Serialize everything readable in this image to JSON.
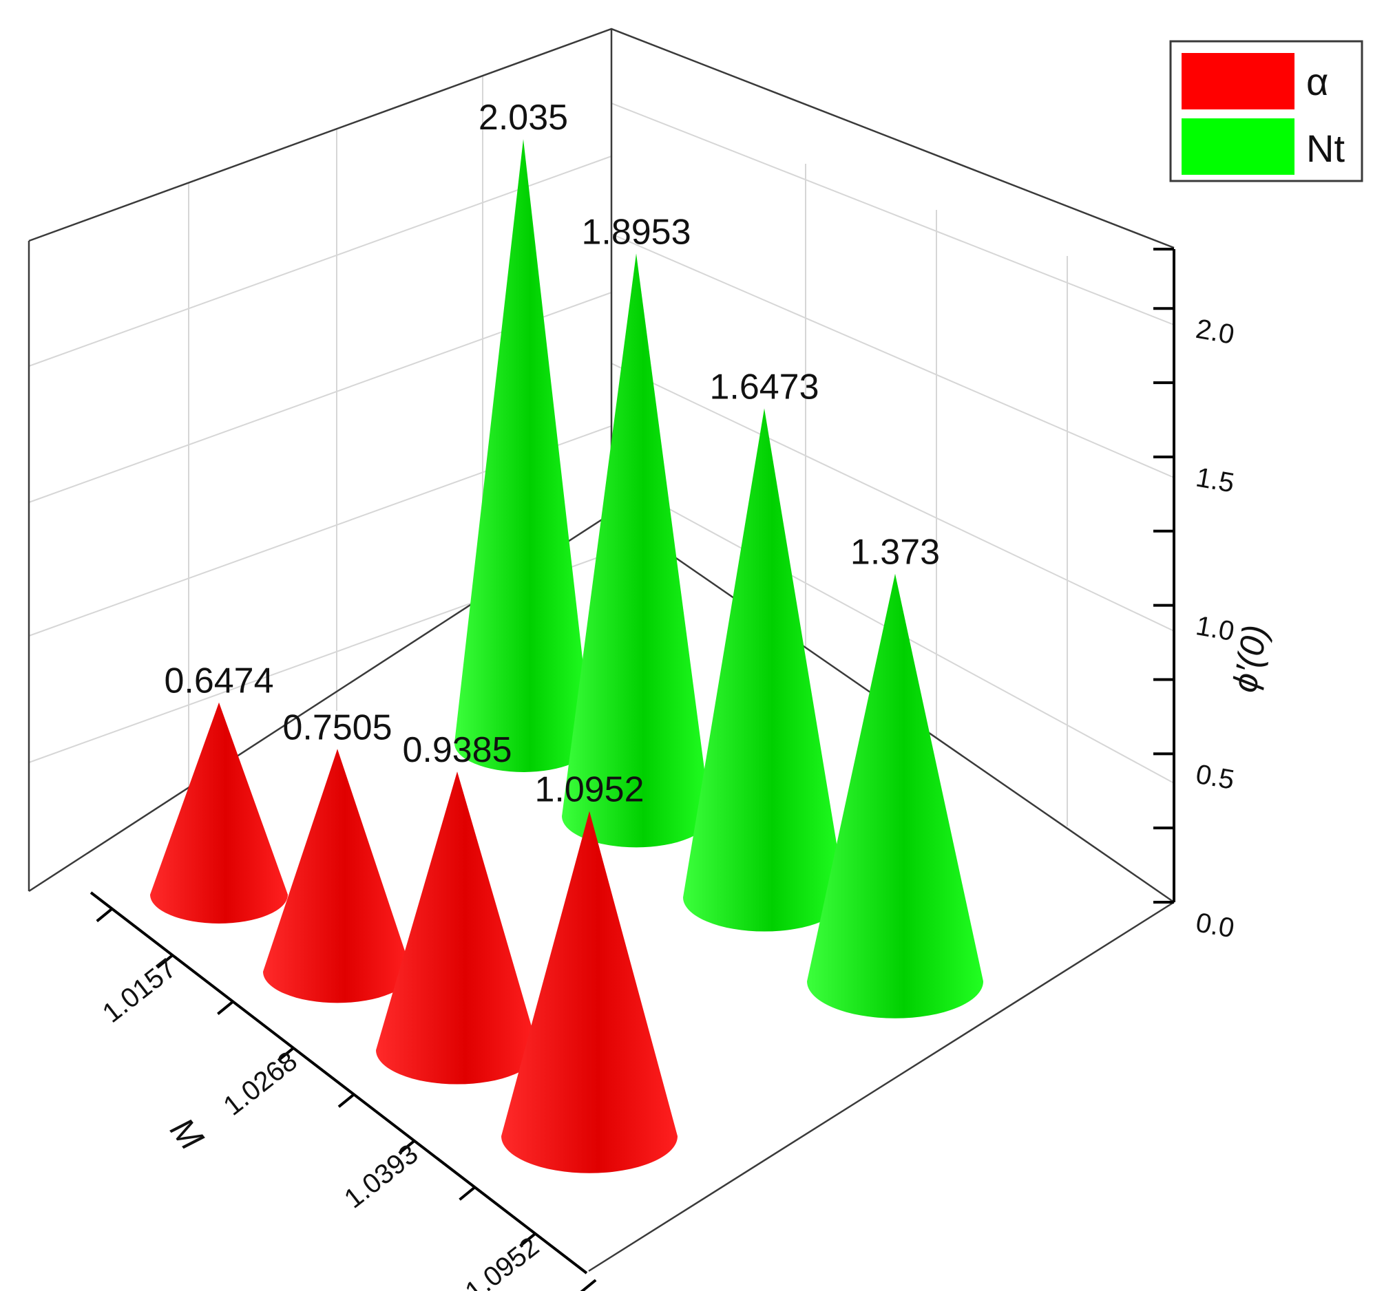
{
  "chart_data": {
    "type": "bar",
    "shape": "3d-cone",
    "categories": [
      "1.0157",
      "1.0268",
      "1.0393",
      "1.0952"
    ],
    "series": [
      {
        "name": "α",
        "color": "#ff0000",
        "values": [
          0.6474,
          0.7505,
          0.9385,
          1.0952
        ],
        "value_labels": [
          "0.6474",
          "0.7505",
          "0.9385",
          "1.0952"
        ]
      },
      {
        "name": "Nt",
        "color": "#00ff00",
        "values": [
          2.035,
          1.8953,
          1.6473,
          1.373
        ],
        "value_labels": [
          "2.035",
          "1.8953",
          "1.6473",
          "1.373"
        ]
      }
    ],
    "xlabel": "M",
    "zlabel": "ϕ′(0)",
    "zlim": [
      0.0,
      2.2
    ],
    "zticks": [
      "0.0",
      "0.5",
      "1.0",
      "1.5",
      "2.0"
    ],
    "grid": true,
    "legend_position": "top-right"
  }
}
